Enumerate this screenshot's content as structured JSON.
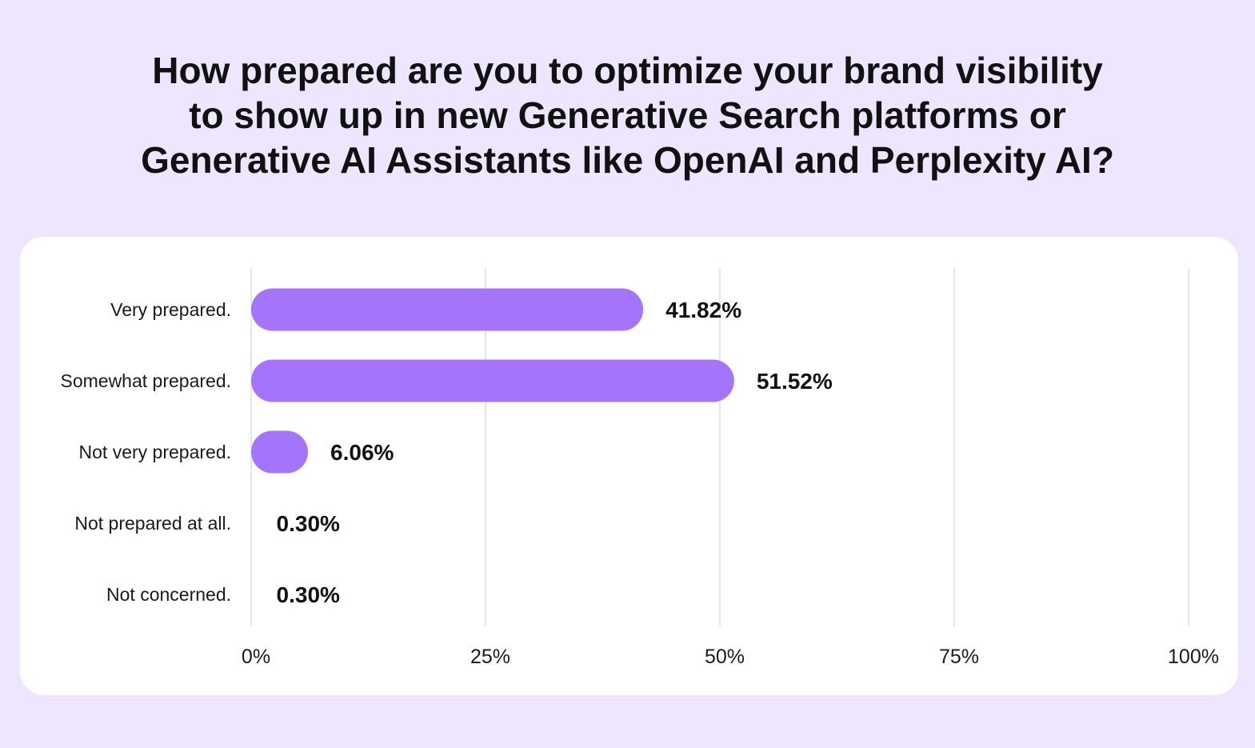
{
  "chart_data": {
    "type": "bar",
    "orientation": "horizontal",
    "title_lines": [
      "How prepared are you to optimize your brand visibility",
      "to show up in new Generative Search platforms or",
      "Generative AI Assistants like OpenAI and Perplexity AI?"
    ],
    "categories": [
      "Very prepared.",
      "Somewhat prepared.",
      "Not very prepared.",
      "Not prepared at all.",
      "Not concerned."
    ],
    "values": [
      41.82,
      51.52,
      6.06,
      0.3,
      0.3
    ],
    "value_labels": [
      "41.82%",
      "51.52%",
      "6.06%",
      "0.30%",
      "0.30%"
    ],
    "xlim": [
      0,
      100
    ],
    "x_ticks": [
      0,
      25,
      50,
      75,
      100
    ],
    "x_tick_labels": [
      "0%",
      "25%",
      "50%",
      "75%",
      "100%"
    ],
    "grid": true,
    "bar_color": "#a475fb",
    "grid_color": "#dddddd",
    "background_color": "#eee6ff",
    "panel_color": "#ffffff"
  }
}
